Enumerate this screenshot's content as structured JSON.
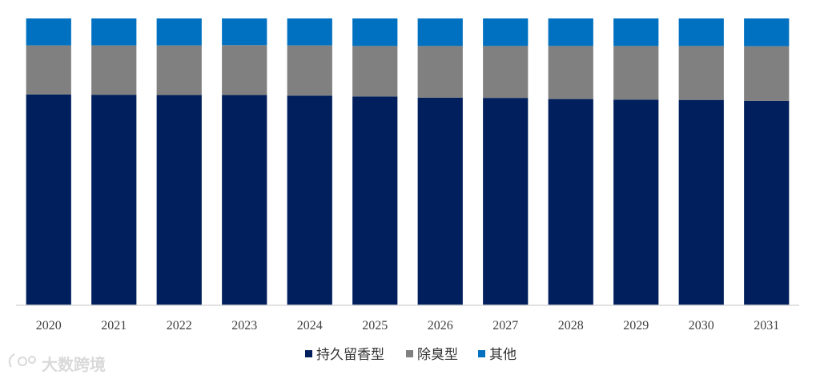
{
  "chart_data": {
    "type": "bar",
    "stacked": true,
    "normalized": true,
    "categories": [
      "2020",
      "2021",
      "2022",
      "2023",
      "2024",
      "2025",
      "2026",
      "2027",
      "2028",
      "2029",
      "2030",
      "2031"
    ],
    "series": [
      {
        "name": "持久留香型",
        "color": "#001f5c",
        "values": [
          73.5,
          73.4,
          73.3,
          73.3,
          73.1,
          72.8,
          72.4,
          72.3,
          71.9,
          71.7,
          71.6,
          71.3
        ]
      },
      {
        "name": "除臭型",
        "color": "#808080",
        "values": [
          17.1,
          17.2,
          17.3,
          17.4,
          17.5,
          17.6,
          18.0,
          18.1,
          18.5,
          18.7,
          18.8,
          19.0
        ]
      },
      {
        "name": "其他",
        "color": "#0070c0",
        "values": [
          9.4,
          9.4,
          9.4,
          9.3,
          9.4,
          9.6,
          9.6,
          9.6,
          9.6,
          9.6,
          9.6,
          9.7
        ]
      }
    ],
    "ylim": [
      0,
      100
    ],
    "grid": false,
    "legend_position": "bottom",
    "title": "",
    "xlabel": "",
    "ylabel": ""
  },
  "watermark": {
    "text": "大数跨境"
  }
}
